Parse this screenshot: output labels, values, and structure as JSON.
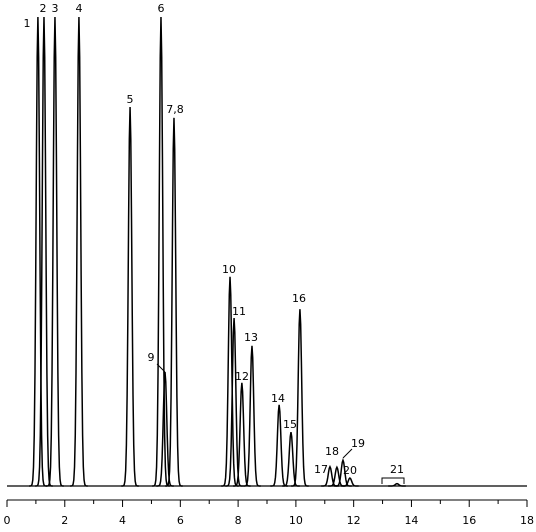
{
  "chart_data": {
    "type": "chromatogram",
    "peaks": [
      {
        "label": "1",
        "x": 1.07,
        "height": 100
      },
      {
        "label": "2",
        "x": 1.28,
        "height": 100
      },
      {
        "label": "3",
        "x": 1.66,
        "height": 100
      },
      {
        "label": "4",
        "x": 2.49,
        "height": 100
      },
      {
        "label": "5",
        "x": 4.26,
        "height": 80.8
      },
      {
        "label": "6",
        "x": 5.33,
        "height": 100
      },
      {
        "label": "7,8",
        "x": 5.78,
        "height": 78.5
      },
      {
        "label": "9",
        "x": 5.47,
        "height": 24.3
      },
      {
        "label": "10",
        "x": 7.72,
        "height": 44.6
      },
      {
        "label": "11",
        "x": 7.86,
        "height": 35.8
      },
      {
        "label": "12",
        "x": 8.13,
        "height": 22.0
      },
      {
        "label": "13",
        "x": 8.48,
        "height": 29.9
      },
      {
        "label": "14",
        "x": 9.42,
        "height": 17.3
      },
      {
        "label": "15",
        "x": 9.83,
        "height": 11.5
      },
      {
        "label": "16",
        "x": 10.14,
        "height": 37.7
      },
      {
        "label": "17",
        "x": 11.18,
        "height": 4.1
      },
      {
        "label": "18",
        "x": 11.42,
        "height": 4.0
      },
      {
        "label": "19",
        "x": 11.63,
        "height": 5.5
      },
      {
        "label": "20",
        "x": 11.87,
        "height": 1.7
      },
      {
        "label": "21",
        "x": 13.5,
        "height": 0.5
      }
    ],
    "xlim": [
      0,
      18
    ],
    "ylim": [
      0,
      100
    ],
    "xticks": [
      0,
      2,
      4,
      6,
      8,
      10,
      12,
      14,
      16,
      18
    ],
    "xminorticks": [
      1,
      3,
      5,
      7,
      9,
      11,
      13,
      15,
      17
    ],
    "color": "#000000"
  }
}
